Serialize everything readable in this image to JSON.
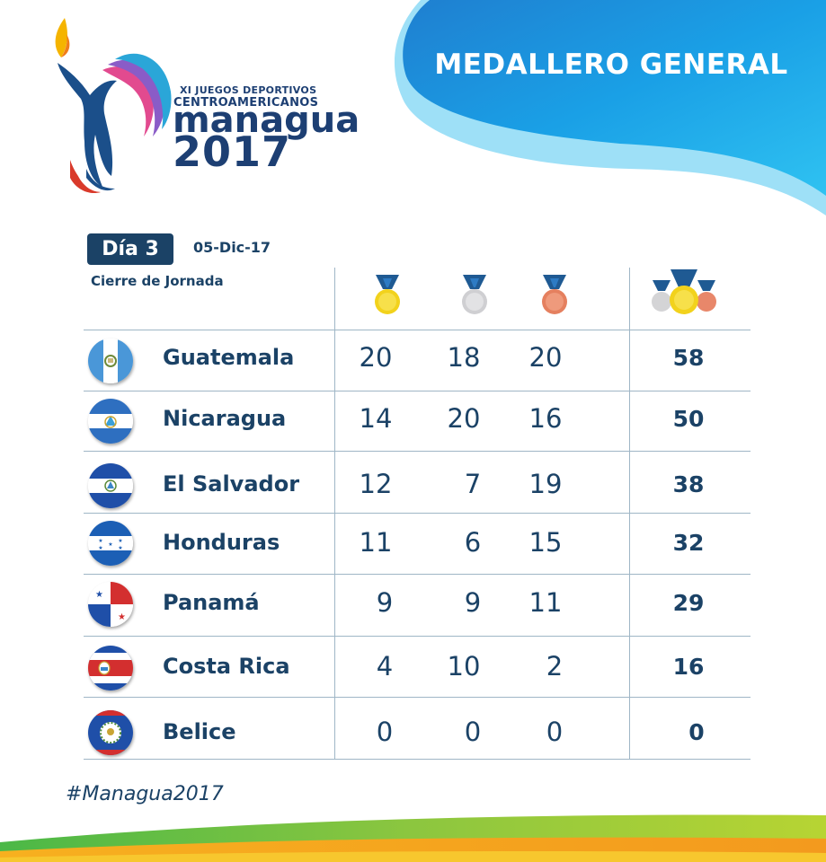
{
  "logo": {
    "line1": "XI JUEGOS DEPORTIVOS",
    "line2": "CENTROAMERICANOS",
    "city": "managua",
    "year": "2017"
  },
  "banner": {
    "title": "MEDALLERO GENERAL"
  },
  "day": {
    "label": "Día 3",
    "date": "05-Dic-17",
    "subtitle": "Cierre de Jornada"
  },
  "medal_icons": [
    "gold-medal-icon",
    "silver-medal-icon",
    "bronze-medal-icon",
    "medals-total-icon"
  ],
  "rows": [
    {
      "country": "Guatemala",
      "gold": "20",
      "silver": "18",
      "bronze": "20",
      "total": "58",
      "flag": "guatemala-flag-icon"
    },
    {
      "country": "Nicaragua",
      "gold": "14",
      "silver": "20",
      "bronze": "16",
      "total": "50",
      "flag": "nicaragua-flag-icon"
    },
    {
      "country": "El Salvador",
      "gold": "12",
      "silver": "7",
      "bronze": "19",
      "total": "38",
      "flag": "el-salvador-flag-icon"
    },
    {
      "country": "Honduras",
      "gold": "11",
      "silver": "6",
      "bronze": "15",
      "total": "32",
      "flag": "honduras-flag-icon"
    },
    {
      "country": "Panamá",
      "gold": "9",
      "silver": "9",
      "bronze": "11",
      "total": "29",
      "flag": "panama-flag-icon"
    },
    {
      "country": "Costa Rica",
      "gold": "4",
      "silver": "10",
      "bronze": "2",
      "total": "16",
      "flag": "costa-rica-flag-icon"
    },
    {
      "country": "Belice",
      "gold": "0",
      "silver": "0",
      "bronze": "0",
      "total": "0",
      "flag": "belize-flag-icon"
    }
  ],
  "hashtag": "#Managua2017",
  "colors": {
    "navy": "#1b4266",
    "banner_blue": "#1a8fd6",
    "gold": "#f2d21c",
    "silver": "#d4d4d6",
    "bronze": "#e8876a"
  }
}
